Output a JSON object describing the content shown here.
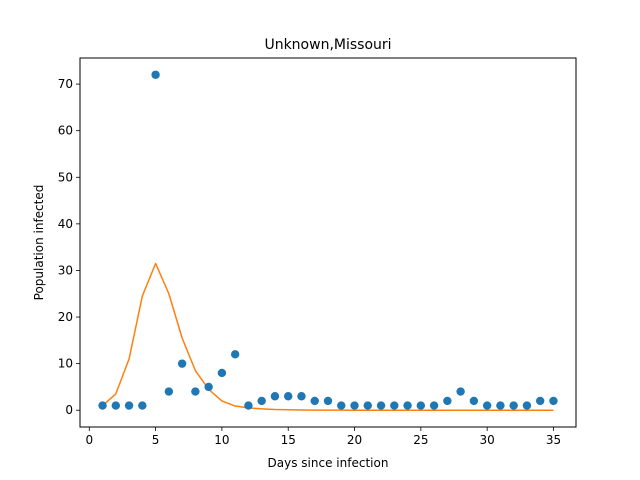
{
  "chart_data": {
    "type": "scatter",
    "title": "Unknown,Missouri",
    "xlabel": "Days since infection",
    "ylabel": "Population infected",
    "xlim": [
      -0.7,
      36.7
    ],
    "ylim": [
      -3.6,
      75.6
    ],
    "xticks": [
      0,
      5,
      10,
      15,
      20,
      25,
      30,
      35
    ],
    "yticks": [
      0,
      10,
      20,
      30,
      40,
      50,
      60,
      70
    ],
    "grid": false,
    "series": [
      {
        "kind": "scatter",
        "color": "#1f77b4",
        "x": [
          1,
          2,
          3,
          4,
          5,
          6,
          7,
          8,
          9,
          10,
          11,
          12,
          13,
          14,
          15,
          16,
          17,
          18,
          19,
          20,
          21,
          22,
          23,
          24,
          25,
          26,
          27,
          28,
          29,
          30,
          31,
          32,
          33,
          34,
          35
        ],
        "y": [
          1,
          1,
          1,
          1,
          72,
          4,
          10,
          4,
          5,
          8,
          12,
          1,
          2,
          3,
          3,
          3,
          2,
          2,
          1,
          1,
          1,
          1,
          1,
          1,
          1,
          1,
          2,
          4,
          2,
          1,
          1,
          1,
          1,
          2,
          2
        ]
      },
      {
        "kind": "line",
        "color": "#ff7f0e",
        "x": [
          1,
          2,
          3,
          4,
          5,
          6,
          7,
          8,
          9,
          10,
          11,
          12,
          13,
          14,
          15,
          16,
          17,
          18,
          19,
          20,
          21,
          22,
          23,
          24,
          25,
          26,
          27,
          28,
          29,
          30,
          31,
          32,
          33,
          34,
          35
        ],
        "y": [
          1,
          3.5,
          11,
          24.5,
          31.5,
          25,
          15.5,
          8.5,
          4.5,
          2,
          0.9,
          0.5,
          0.3,
          0.15,
          0.1,
          0.05,
          0.03,
          0.02,
          0.01,
          0,
          0,
          0,
          0,
          0,
          0,
          0,
          0,
          0,
          0,
          0,
          0,
          0,
          0,
          0,
          0
        ]
      }
    ]
  }
}
